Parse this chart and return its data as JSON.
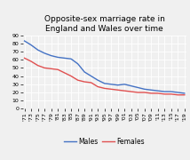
{
  "title": "Opposite-sex marriage rate in\nEngland and Wales over time",
  "years": [
    1971,
    1973,
    1975,
    1977,
    1979,
    1981,
    1983,
    1985,
    1987,
    1989,
    1991,
    1993,
    1995,
    1997,
    1999,
    2001,
    2003,
    2005,
    2007,
    2009,
    2011,
    2013,
    2015,
    2017,
    2019
  ],
  "males": [
    83,
    78,
    72,
    68,
    65,
    63,
    62,
    61,
    55,
    45,
    40,
    35,
    31,
    30,
    29,
    30,
    28,
    26,
    24,
    23,
    22,
    21,
    21,
    20,
    19
  ],
  "females": [
    62,
    58,
    53,
    50,
    49,
    48,
    44,
    40,
    35,
    33,
    32,
    27,
    25,
    24,
    23,
    22,
    21,
    20,
    20,
    19,
    19,
    18,
    18,
    17,
    17
  ],
  "males_color": "#4472C4",
  "females_color": "#E05050",
  "ylim": [
    0,
    90
  ],
  "yticks": [
    0,
    10,
    20,
    30,
    40,
    50,
    60,
    70,
    80,
    90
  ],
  "background_color": "#f0f0f0",
  "grid_color": "#ffffff",
  "title_fontsize": 6.5,
  "legend_fontsize": 5.5,
  "tick_fontsize": 4.5,
  "linewidth": 1.0
}
